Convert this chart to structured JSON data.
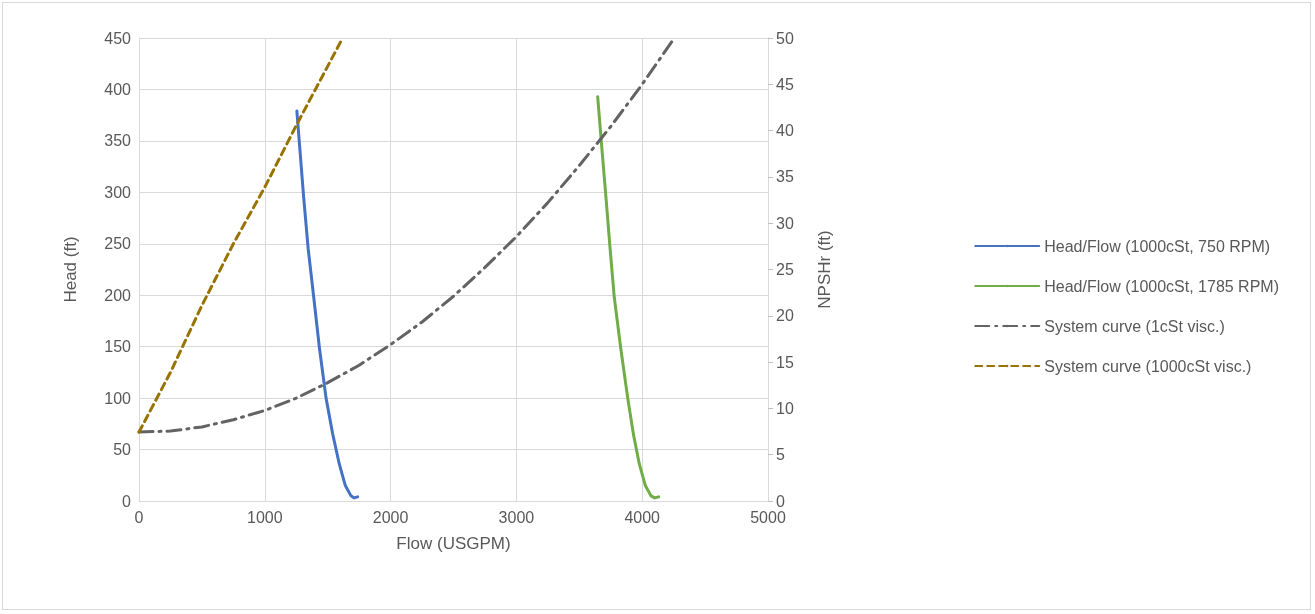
{
  "chart_data": {
    "type": "line",
    "xlabel": "Flow (USGPM)",
    "ylabel": "Head (ft)",
    "y2label": "NPSHr (ft)",
    "xlim": [
      0,
      5000
    ],
    "xticks": [
      0,
      1000,
      2000,
      3000,
      4000,
      5000
    ],
    "ylim": [
      0,
      450
    ],
    "yticks": [
      0,
      50,
      100,
      150,
      200,
      250,
      300,
      350,
      400,
      450
    ],
    "y2lim": [
      0,
      50
    ],
    "y2ticks": [
      0,
      5,
      10,
      15,
      20,
      25,
      30,
      35,
      40,
      45,
      50
    ],
    "grid": true,
    "legend": "right",
    "marker": "none",
    "series": [
      {
        "name": "Head/Flow (1000cSt, 750 RPM)",
        "color": "#4472c4",
        "line_style": "solid",
        "x": [
          1255,
          1280,
          1309,
          1345,
          1389,
          1435,
          1487,
          1540,
          1592,
          1640,
          1685,
          1710,
          1738
        ],
        "values": [
          379,
          340,
          295,
          245,
          198,
          148,
          100,
          65,
          36,
          15,
          5,
          3,
          4
        ]
      },
      {
        "name": "Head/Flow (1000cSt, 1785 RPM)",
        "color": "#70ad47",
        "line_style": "solid",
        "x": [
          3646,
          3678,
          3712,
          3745,
          3778,
          3830,
          3885,
          3930,
          3977,
          4025,
          4070,
          4100,
          4131
        ],
        "values": [
          393,
          345,
          295,
          245,
          198,
          148,
          100,
          65,
          36,
          15,
          5,
          3,
          4
        ]
      },
      {
        "name": "System curve (1cSt visc.)",
        "color": "#636363",
        "line_style": "dashdot",
        "x": [
          0,
          250,
          500,
          750,
          1000,
          1250,
          1500,
          1750,
          2000,
          2250,
          2500,
          2750,
          3000,
          3250,
          3500,
          3750,
          4000,
          4250
        ],
        "values": [
          67,
          68,
          72,
          79,
          88,
          100,
          115,
          132,
          152,
          174,
          199,
          227,
          257,
          290,
          326,
          364,
          405,
          449
        ]
      },
      {
        "name": "System curve (1000cSt visc.)",
        "color": "#997300",
        "line_style": "dashed",
        "x": [
          0,
          250,
          500,
          750,
          1000,
          1250,
          1619
        ],
        "values": [
          67,
          125,
          190,
          250,
          305,
          365,
          450
        ]
      }
    ]
  }
}
